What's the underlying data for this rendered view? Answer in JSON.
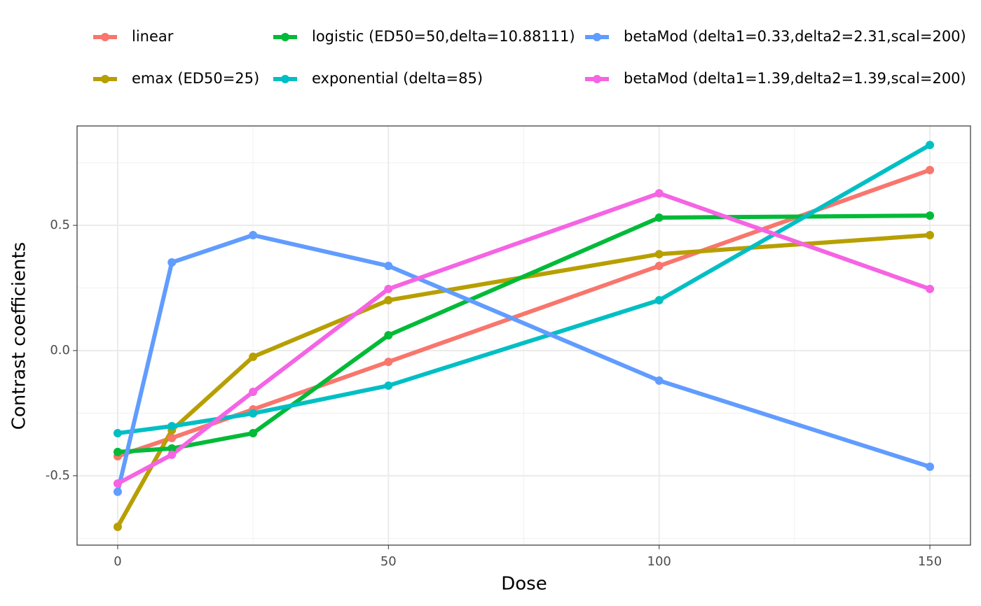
{
  "chart_data": {
    "type": "line",
    "x_label": "Dose",
    "y_label": "Contrast coefficients",
    "x": [
      0,
      10,
      25,
      50,
      100,
      150
    ],
    "series": [
      {
        "name": "linear",
        "color": "#F8766D",
        "values": [
          -0.422,
          -0.349,
          -0.235,
          -0.045,
          0.338,
          0.721
        ]
      },
      {
        "name": "emax (ED50=25)",
        "color": "#B79F00",
        "values": [
          -0.704,
          -0.318,
          -0.025,
          0.201,
          0.385,
          0.461
        ]
      },
      {
        "name": "logistic (ED50=50,delta=10.88111)",
        "color": "#00BA38",
        "values": [
          -0.405,
          -0.391,
          -0.33,
          0.061,
          0.531,
          0.539
        ]
      },
      {
        "name": "exponential (delta=85)",
        "color": "#00BFC4",
        "values": [
          -0.33,
          -0.302,
          -0.251,
          -0.14,
          0.201,
          0.821
        ]
      },
      {
        "name": "betaMod (delta1=0.33,delta2=2.31,scal=200)",
        "color": "#619CFF",
        "values": [
          -0.564,
          0.352,
          0.461,
          0.338,
          -0.12,
          -0.464
        ]
      },
      {
        "name": "betaMod (delta1=1.39,delta2=1.39,scal=200)",
        "color": "#F564E3",
        "values": [
          -0.531,
          -0.416,
          -0.165,
          0.246,
          0.628,
          0.246
        ]
      }
    ],
    "xlim": [
      -7.5,
      157.5
    ],
    "ylim": [
      -0.777,
      0.897
    ],
    "xticks": [
      0,
      50,
      100,
      150
    ],
    "yticks": [
      -0.5,
      {
        "value": 0,
        "label": "0.0"
      },
      0.5
    ],
    "grid": true,
    "legend": "top"
  }
}
